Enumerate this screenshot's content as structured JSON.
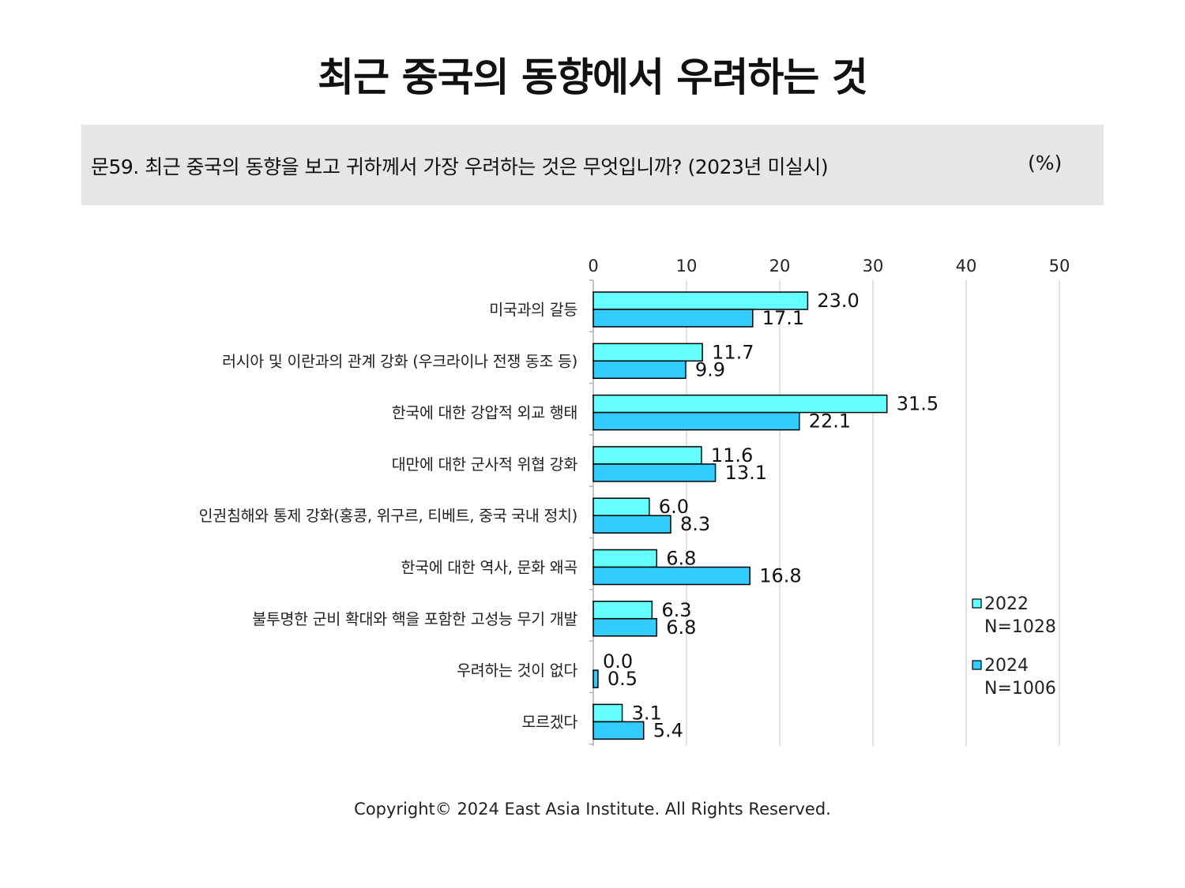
{
  "title": "최근 중국의 동향에서 우려하는 것",
  "question": "문59. 최근 중국의 동향을 보고 귀하께서 가장 우려하는 것은 무엇입니까? (2023년 미실시)",
  "unit": "(%)",
  "copyright": "Copyright© 2024 East Asia Institute. All Rights Reserved.",
  "colors": {
    "series_2022": "#66ffff",
    "series_2024": "#33ccff",
    "grid": "#d9d9d9",
    "bar_stroke": "#000000"
  },
  "chart_data": {
    "type": "bar",
    "orientation": "horizontal",
    "categories": [
      "미국과의 갈등",
      "러시아 및 이란과의 관계 강화 (우크라이나 전쟁 동조 등)",
      "한국에 대한 강압적 외교 행태",
      "대만에 대한 군사적 위협 강화",
      "인권침해와 통제 강화(홍콩, 위구르, 티베트, 중국 국내 정치)",
      "한국에 대한 역사, 문화 왜곡",
      "불투명한 군비 확대와 핵을 포함한 고성능 무기 개발",
      "우려하는 것이 없다",
      "모르겠다"
    ],
    "series": [
      {
        "name": "2022",
        "sample": "N=1028",
        "values": [
          23.0,
          11.7,
          31.5,
          11.6,
          6.0,
          6.8,
          6.3,
          0.0,
          3.1
        ]
      },
      {
        "name": "2024",
        "sample": "N=1006",
        "values": [
          17.1,
          9.9,
          22.1,
          13.1,
          8.3,
          16.8,
          6.8,
          0.5,
          5.4
        ]
      }
    ],
    "xlim": [
      0,
      50
    ],
    "xticks": [
      0,
      10,
      20,
      30,
      40,
      50
    ],
    "grid": true,
    "legend_position": "right"
  }
}
